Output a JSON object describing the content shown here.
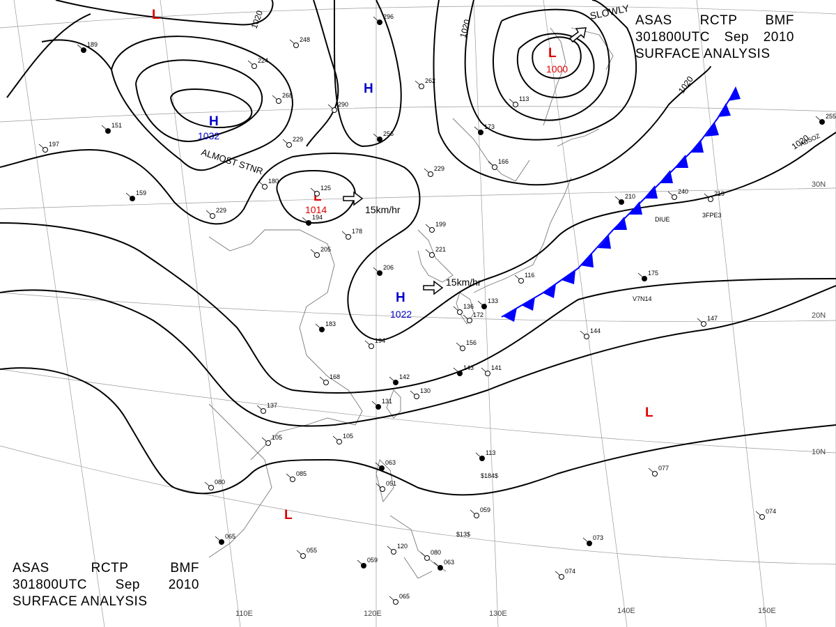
{
  "header": {
    "line1": [
      "ASAS",
      "RCTP",
      "BMF"
    ],
    "line2": [
      "301800UTC",
      "Sep",
      "2010"
    ],
    "line3": "SURFACE ANALYSIS"
  },
  "colors": {
    "high": "#0000cc",
    "low": "#e00000",
    "front": "#0000ff",
    "ink": "#000000",
    "grid": "#888888"
  },
  "isobar_labels": [
    "1020",
    "1020",
    "1020",
    "1020"
  ],
  "pressure_centers": [
    {
      "kind": "H",
      "letter": "H",
      "value": "1032",
      "note": "ALMOST STNR"
    },
    {
      "kind": "H",
      "letter": "H",
      "value": "",
      "note": ""
    },
    {
      "kind": "L",
      "letter": "L",
      "value": "1014",
      "note": ""
    },
    {
      "kind": "H",
      "letter": "H",
      "value": "1022",
      "note": ""
    },
    {
      "kind": "L",
      "letter": "L",
      "value": "1000",
      "note": ""
    },
    {
      "kind": "L",
      "letter": "L",
      "value": "",
      "note": ""
    },
    {
      "kind": "L",
      "letter": "L",
      "value": "",
      "note": ""
    },
    {
      "kind": "L",
      "letter": "L",
      "value": "",
      "note": ""
    }
  ],
  "motion_labels": [
    "15km/hr",
    "15km/hr",
    "SLOWLY"
  ],
  "lat_labels": [
    "30N",
    "20N",
    "10N"
  ],
  "lon_labels": [
    "110E",
    "120E",
    "130E",
    "140E",
    "150E"
  ],
  "station_numbers": [
    "189",
    "224",
    "248",
    "296",
    "262",
    "290",
    "256",
    "268",
    "229",
    "151",
    "197",
    "180",
    "159",
    "229",
    "125",
    "194",
    "178",
    "205",
    "206",
    "199",
    "221",
    "183",
    "194",
    "168",
    "142",
    "130",
    "137",
    "131",
    "105",
    "105",
    "063",
    "051",
    "085",
    "065",
    "080",
    "055",
    "059",
    "120",
    "080",
    "063",
    "065",
    "156",
    "143",
    "141",
    "136",
    "113",
    "059",
    "113",
    "173",
    "166",
    "229",
    "210",
    "240",
    "219",
    "175",
    "144",
    "147",
    "255",
    "077",
    "074",
    "073",
    "074",
    "172",
    "133",
    "116"
  ],
  "small_labels": [
    "ABSOZ",
    "DIUE",
    "3FPE3",
    "$184$",
    "$13$",
    "V7N14"
  ]
}
